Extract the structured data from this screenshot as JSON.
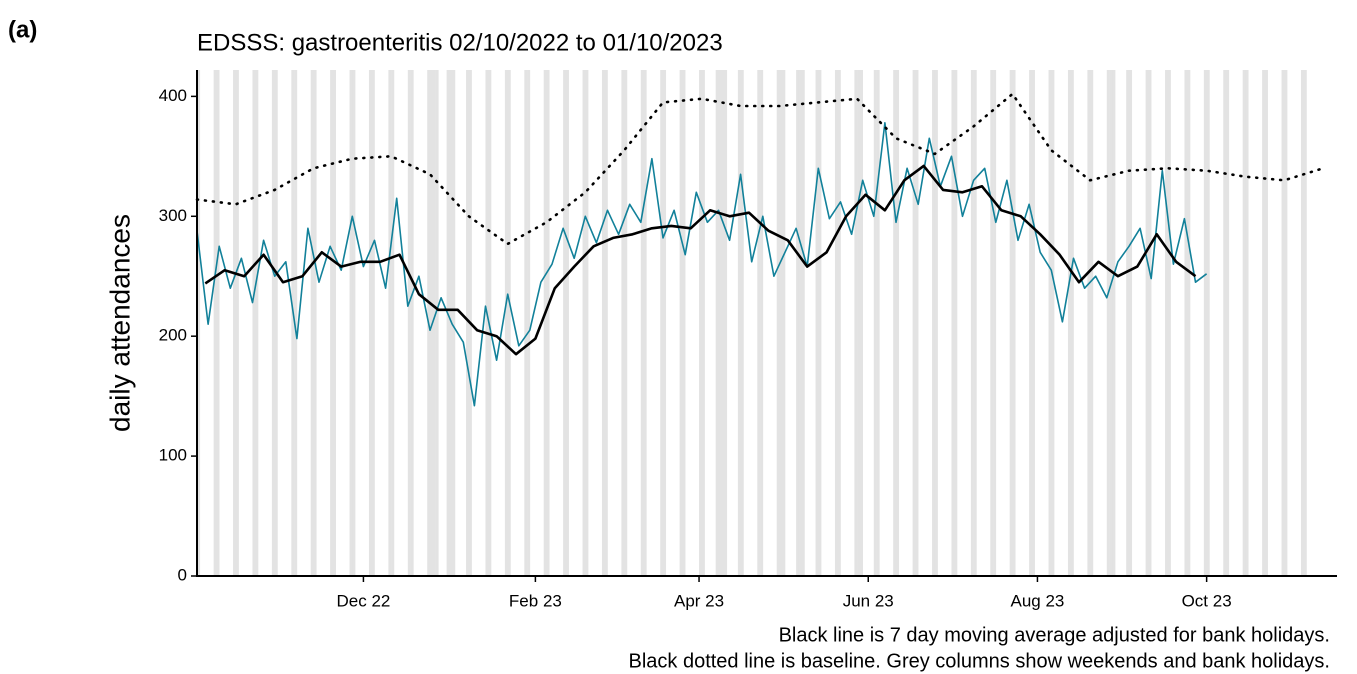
{
  "chart_data": {
    "type": "line",
    "panel_label": "(a)",
    "title": "EDSSS: gastroenteritis 02/10/2022 to 01/10/2023",
    "y_label": "daily attendances",
    "caption": [
      "Black line is 7 day moving average adjusted for bank holidays.",
      "Black dotted line is baseline. Grey columns show weekends and bank holidays."
    ],
    "xlim": [
      "2022-10-02",
      "2023-11-17"
    ],
    "xticks": [
      {
        "value": "2022-12-01",
        "label": "Dec 22"
      },
      {
        "value": "2023-02-01",
        "label": "Feb 23"
      },
      {
        "value": "2023-04-01",
        "label": "Apr 23"
      },
      {
        "value": "2023-06-01",
        "label": "Jun 23"
      },
      {
        "value": "2023-08-01",
        "label": "Aug 23"
      },
      {
        "value": "2023-10-01",
        "label": "Oct 23"
      }
    ],
    "ylim": [
      0,
      422
    ],
    "yticks": [
      0,
      100,
      200,
      300,
      400
    ],
    "shading": {
      "color": "#e3e3e3",
      "start": "2022-10-02",
      "end": "2023-11-05",
      "bank_holidays": [
        "2022-12-26",
        "2022-12-27",
        "2023-01-02",
        "2023-04-07",
        "2023-04-10",
        "2023-05-01",
        "2023-05-08",
        "2023-05-29",
        "2023-08-28"
      ]
    },
    "series": [
      {
        "style": "solid",
        "color": "#12819a",
        "width": 1.6,
        "x": [
          "2022-10-02",
          "2022-10-06",
          "2022-10-10",
          "2022-10-14",
          "2022-10-18",
          "2022-10-22",
          "2022-10-26",
          "2022-10-30",
          "2022-11-03",
          "2022-11-07",
          "2022-11-11",
          "2022-11-15",
          "2022-11-19",
          "2022-11-23",
          "2022-11-27",
          "2022-12-01",
          "2022-12-05",
          "2022-12-09",
          "2022-12-13",
          "2022-12-17",
          "2022-12-21",
          "2022-12-25",
          "2022-12-29",
          "2023-01-02",
          "2023-01-06",
          "2023-01-10",
          "2023-01-14",
          "2023-01-18",
          "2023-01-22",
          "2023-01-26",
          "2023-01-30",
          "2023-02-03",
          "2023-02-07",
          "2023-02-11",
          "2023-02-15",
          "2023-02-19",
          "2023-02-23",
          "2023-02-27",
          "2023-03-03",
          "2023-03-07",
          "2023-03-11",
          "2023-03-15",
          "2023-03-19",
          "2023-03-23",
          "2023-03-27",
          "2023-03-31",
          "2023-04-04",
          "2023-04-08",
          "2023-04-12",
          "2023-04-16",
          "2023-04-20",
          "2023-04-24",
          "2023-04-28",
          "2023-05-02",
          "2023-05-06",
          "2023-05-10",
          "2023-05-14",
          "2023-05-18",
          "2023-05-22",
          "2023-05-26",
          "2023-05-30",
          "2023-06-03",
          "2023-06-07",
          "2023-06-11",
          "2023-06-15",
          "2023-06-19",
          "2023-06-23",
          "2023-06-27",
          "2023-07-01",
          "2023-07-05",
          "2023-07-09",
          "2023-07-13",
          "2023-07-17",
          "2023-07-21",
          "2023-07-25",
          "2023-07-29",
          "2023-08-02",
          "2023-08-06",
          "2023-08-10",
          "2023-08-14",
          "2023-08-18",
          "2023-08-22",
          "2023-08-26",
          "2023-08-30",
          "2023-09-03",
          "2023-09-07",
          "2023-09-11",
          "2023-09-15",
          "2023-09-19",
          "2023-09-23",
          "2023-09-27",
          "2023-10-01"
        ],
        "values": [
          288,
          210,
          275,
          240,
          265,
          228,
          280,
          250,
          262,
          198,
          290,
          245,
          275,
          255,
          300,
          258,
          280,
          240,
          315,
          225,
          250,
          205,
          232,
          210,
          195,
          142,
          225,
          180,
          235,
          192,
          205,
          245,
          260,
          290,
          265,
          300,
          278,
          305,
          285,
          310,
          295,
          348,
          282,
          305,
          268,
          320,
          295,
          305,
          280,
          335,
          262,
          300,
          250,
          270,
          290,
          258,
          340,
          298,
          312,
          285,
          330,
          300,
          378,
          295,
          340,
          310,
          365,
          325,
          350,
          300,
          330,
          340,
          295,
          330,
          280,
          310,
          270,
          255,
          212,
          265,
          240,
          250,
          232,
          262,
          275,
          290,
          248,
          338,
          260,
          298,
          245,
          252
        ]
      },
      {
        "style": "solid",
        "color": "#000000",
        "width": 2.6,
        "x": [
          "2022-10-05",
          "2022-10-12",
          "2022-10-19",
          "2022-10-26",
          "2022-11-02",
          "2022-11-09",
          "2022-11-16",
          "2022-11-23",
          "2022-11-30",
          "2022-12-07",
          "2022-12-14",
          "2022-12-21",
          "2022-12-28",
          "2023-01-04",
          "2023-01-11",
          "2023-01-18",
          "2023-01-25",
          "2023-02-01",
          "2023-02-08",
          "2023-02-15",
          "2023-02-22",
          "2023-03-01",
          "2023-03-08",
          "2023-03-15",
          "2023-03-22",
          "2023-03-29",
          "2023-04-05",
          "2023-04-12",
          "2023-04-19",
          "2023-04-26",
          "2023-05-03",
          "2023-05-10",
          "2023-05-17",
          "2023-05-24",
          "2023-05-31",
          "2023-06-07",
          "2023-06-14",
          "2023-06-21",
          "2023-06-28",
          "2023-07-05",
          "2023-07-12",
          "2023-07-19",
          "2023-07-26",
          "2023-08-02",
          "2023-08-09",
          "2023-08-16",
          "2023-08-23",
          "2023-08-30",
          "2023-09-06",
          "2023-09-13",
          "2023-09-20",
          "2023-09-27"
        ],
        "values": [
          244,
          255,
          250,
          268,
          245,
          250,
          270,
          258,
          262,
          262,
          268,
          235,
          222,
          222,
          205,
          200,
          185,
          198,
          240,
          258,
          275,
          282,
          285,
          290,
          292,
          290,
          305,
          300,
          303,
          288,
          280,
          258,
          270,
          300,
          318,
          305,
          330,
          342,
          322,
          320,
          325,
          305,
          300,
          285,
          268,
          245,
          262,
          250,
          258,
          285,
          262,
          250
        ]
      },
      {
        "style": "dotted",
        "color": "#000000",
        "width": 2.6,
        "x": [
          "2022-10-02",
          "2022-10-16",
          "2022-10-30",
          "2022-11-13",
          "2022-11-27",
          "2022-12-11",
          "2022-12-25",
          "2023-01-08",
          "2023-01-22",
          "2023-02-05",
          "2023-02-19",
          "2023-03-05",
          "2023-03-19",
          "2023-04-02",
          "2023-04-16",
          "2023-04-30",
          "2023-05-14",
          "2023-05-28",
          "2023-06-11",
          "2023-06-25",
          "2023-07-09",
          "2023-07-23",
          "2023-08-06",
          "2023-08-20",
          "2023-09-03",
          "2023-09-17",
          "2023-10-01",
          "2023-10-15",
          "2023-10-29",
          "2023-11-12"
        ],
        "values": [
          314,
          310,
          322,
          340,
          348,
          350,
          335,
          300,
          277,
          295,
          320,
          355,
          395,
          398,
          392,
          392,
          395,
          398,
          365,
          352,
          375,
          402,
          355,
          330,
          338,
          340,
          338,
          333,
          330,
          340
        ]
      }
    ]
  }
}
